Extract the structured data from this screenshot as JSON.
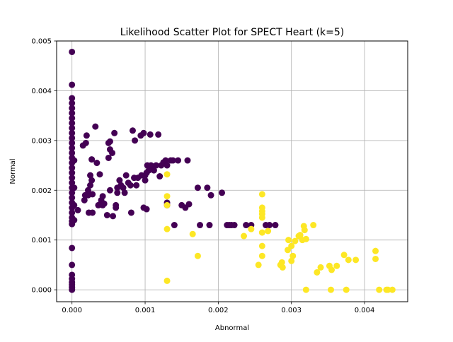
{
  "chart_data": {
    "type": "scatter",
    "title": "Likelihood Scatter Plot for SPECT Heart (k=5)",
    "xlabel": "Abnormal",
    "ylabel": "Normal",
    "xlim": [
      -0.00021,
      0.00459
    ],
    "ylim": [
      -0.00024,
      0.005
    ],
    "xticks": [
      0.0,
      0.001,
      0.002,
      0.003,
      0.004
    ],
    "xtick_labels": [
      "0.000",
      "0.001",
      "0.002",
      "0.003",
      "0.004"
    ],
    "yticks": [
      0.0,
      0.001,
      0.002,
      0.003,
      0.004,
      0.005
    ],
    "ytick_labels": [
      "0.000",
      "0.001",
      "0.002",
      "0.003",
      "0.004",
      "0.005"
    ],
    "grid": true,
    "legend": null,
    "colors": {
      "cluster_purple": "#440154",
      "cluster_yellow": "#fde725",
      "grid": "#b0b0b0",
      "axes": "#000000"
    },
    "series": [
      {
        "color": "#440154",
        "points": [
          [
            0.0,
            0.00478
          ],
          [
            0.0,
            0.00412
          ],
          [
            0.0,
            0.00385
          ],
          [
            0.0,
            0.00375
          ],
          [
            0.0,
            0.00365
          ],
          [
            0.0,
            0.00355
          ],
          [
            0.0,
            0.00345
          ],
          [
            0.0,
            0.00335
          ],
          [
            0.0,
            0.00325
          ],
          [
            0.0,
            0.00315
          ],
          [
            0.0,
            0.00305
          ],
          [
            0.0,
            0.00295
          ],
          [
            0.0,
            0.00285
          ],
          [
            0.0,
            0.00275
          ],
          [
            0.0,
            0.00265
          ],
          [
            0.0,
            0.00255
          ],
          [
            0.0,
            0.00245
          ],
          [
            0.0,
            0.00235
          ],
          [
            0.0,
            0.00225
          ],
          [
            0.0,
            0.00215
          ],
          [
            0.0,
            0.00205
          ],
          [
            0.0,
            0.00195
          ],
          [
            0.0,
            0.00185
          ],
          [
            0.0,
            0.00175
          ],
          [
            0.0,
            0.00165
          ],
          [
            0.0,
            0.00155
          ],
          [
            0.0,
            0.00145
          ],
          [
            0.0,
            0.00138
          ],
          [
            0.0,
            0.00132
          ],
          [
            0.0,
            0.00084
          ],
          [
            0.0,
            0.0005
          ],
          [
            0.0,
            0.0003
          ],
          [
            0.0,
            0.00022
          ],
          [
            0.0,
            0.00015
          ],
          [
            0.0,
            0.0001
          ],
          [
            0.0,
            5e-05
          ],
          [
            0.0,
            0.0
          ],
          [
            3e-05,
            0.0026
          ],
          [
            3e-05,
            0.00205
          ],
          [
            3e-05,
            0.0017
          ],
          [
            3e-05,
            0.0014
          ],
          [
            8e-05,
            0.0016
          ],
          [
            0.00015,
            0.0029
          ],
          [
            0.00017,
            0.0018
          ],
          [
            0.00018,
            0.0019
          ],
          [
            0.00019,
            0.00295
          ],
          [
            0.0002,
            0.0031
          ],
          [
            0.00022,
            0.0019
          ],
          [
            0.00022,
            0.002
          ],
          [
            0.00023,
            0.00155
          ],
          [
            0.00025,
            0.0023
          ],
          [
            0.00025,
            0.0021
          ],
          [
            0.00027,
            0.0022
          ],
          [
            0.00027,
            0.00262
          ],
          [
            0.00028,
            0.00155
          ],
          [
            0.00028,
            0.00192
          ],
          [
            0.00032,
            0.00328
          ],
          [
            0.00034,
            0.00255
          ],
          [
            0.00036,
            0.0017
          ],
          [
            0.00038,
            0.00232
          ],
          [
            0.0004,
            0.0018
          ],
          [
            0.0004,
            0.00175
          ],
          [
            0.00042,
            0.0017
          ],
          [
            0.00042,
            0.00188
          ],
          [
            0.00044,
            0.00173
          ],
          [
            0.00048,
            0.0015
          ],
          [
            0.0005,
            0.00265
          ],
          [
            0.0005,
            0.00295
          ],
          [
            0.00052,
            0.00282
          ],
          [
            0.00052,
            0.00298
          ],
          [
            0.00052,
            0.002
          ],
          [
            0.00055,
            0.00275
          ],
          [
            0.00056,
            0.00148
          ],
          [
            0.00058,
            0.00315
          ],
          [
            0.0006,
            0.0017
          ],
          [
            0.0006,
            0.00165
          ],
          [
            0.00062,
            0.00205
          ],
          [
            0.00062,
            0.00195
          ],
          [
            0.00065,
            0.0022
          ],
          [
            0.00067,
            0.0021
          ],
          [
            0.0007,
            0.00205
          ],
          [
            0.00072,
            0.00195
          ],
          [
            0.00074,
            0.0023
          ],
          [
            0.00077,
            0.00215
          ],
          [
            0.0008,
            0.0021
          ],
          [
            0.00081,
            0.00155
          ],
          [
            0.00083,
            0.0032
          ],
          [
            0.00085,
            0.00225
          ],
          [
            0.00086,
            0.003
          ],
          [
            0.00088,
            0.0021
          ],
          [
            0.0009,
            0.00225
          ],
          [
            0.00094,
            0.0031
          ],
          [
            0.00095,
            0.0023
          ],
          [
            0.00098,
            0.00165
          ],
          [
            0.00098,
            0.00315
          ],
          [
            0.001,
            0.0022
          ],
          [
            0.001,
            0.0023
          ],
          [
            0.00102,
            0.00162
          ],
          [
            0.00102,
            0.00235
          ],
          [
            0.00103,
            0.0025
          ],
          [
            0.00105,
            0.0024
          ],
          [
            0.00106,
            0.00245
          ],
          [
            0.00107,
            0.00312
          ],
          [
            0.00108,
            0.0025
          ],
          [
            0.0011,
            0.00248
          ],
          [
            0.00112,
            0.0024
          ],
          [
            0.00115,
            0.0025
          ],
          [
            0.00118,
            0.00312
          ],
          [
            0.0012,
            0.00228
          ],
          [
            0.00122,
            0.0025
          ],
          [
            0.00125,
            0.00256
          ],
          [
            0.00128,
            0.0026
          ],
          [
            0.0013,
            0.0025
          ],
          [
            0.0013,
            0.00175
          ],
          [
            0.0013,
            0.0017
          ],
          [
            0.00135,
            0.0026
          ],
          [
            0.00138,
            0.0026
          ],
          [
            0.0014,
            0.0013
          ],
          [
            0.00145,
            0.0026
          ],
          [
            0.0015,
            0.0017
          ],
          [
            0.00155,
            0.00165
          ],
          [
            0.00158,
            0.0026
          ],
          [
            0.0016,
            0.00172
          ],
          [
            0.00172,
            0.00205
          ],
          [
            0.00175,
            0.0013
          ],
          [
            0.00185,
            0.00205
          ],
          [
            0.00188,
            0.0013
          ],
          [
            0.0019,
            0.0019
          ],
          [
            0.00205,
            0.00195
          ],
          [
            0.00212,
            0.0013
          ],
          [
            0.00215,
            0.0013
          ],
          [
            0.00218,
            0.0013
          ],
          [
            0.00222,
            0.0013
          ],
          [
            0.00238,
            0.0013
          ],
          [
            0.00245,
            0.0013
          ],
          [
            0.00265,
            0.0013
          ],
          [
            0.0027,
            0.0013
          ],
          [
            0.00278,
            0.0013
          ]
        ]
      },
      {
        "color": "#fde725",
        "points": [
          [
            0.0013,
            0.00232
          ],
          [
            0.0013,
            0.00188
          ],
          [
            0.0013,
            0.0017
          ],
          [
            0.0013,
            0.00122
          ],
          [
            0.0013,
            0.00018
          ],
          [
            0.00165,
            0.00112
          ],
          [
            0.00172,
            0.00068
          ],
          [
            0.00235,
            0.00108
          ],
          [
            0.00245,
            0.00122
          ],
          [
            0.00255,
            0.0005
          ],
          [
            0.0026,
            0.00192
          ],
          [
            0.0026,
            0.00165
          ],
          [
            0.0026,
            0.00158
          ],
          [
            0.0026,
            0.00152
          ],
          [
            0.0026,
            0.00145
          ],
          [
            0.0026,
            0.00115
          ],
          [
            0.0026,
            0.00088
          ],
          [
            0.0026,
            0.00068
          ],
          [
            0.00268,
            0.00118
          ],
          [
            0.00285,
            0.0005
          ],
          [
            0.00287,
            0.00055
          ],
          [
            0.00288,
            0.00045
          ],
          [
            0.00295,
            0.0008
          ],
          [
            0.00296,
            0.001
          ],
          [
            0.003,
            0.00088
          ],
          [
            0.003,
            0.00058
          ],
          [
            0.00302,
            0.00068
          ],
          [
            0.00305,
            0.00098
          ],
          [
            0.0031,
            0.00108
          ],
          [
            0.00312,
            0.0011
          ],
          [
            0.00315,
            0.001
          ],
          [
            0.00317,
            0.00128
          ],
          [
            0.00318,
            0.0012
          ],
          [
            0.0032,
            0.00102
          ],
          [
            0.0032,
            0.0
          ],
          [
            0.0033,
            0.0013
          ],
          [
            0.00335,
            0.00035
          ],
          [
            0.0034,
            0.00045
          ],
          [
            0.00352,
            0.00048
          ],
          [
            0.00354,
            0.0
          ],
          [
            0.00355,
            0.0004
          ],
          [
            0.00362,
            0.00048
          ],
          [
            0.00372,
            0.0007
          ],
          [
            0.00375,
            0.0
          ],
          [
            0.00378,
            0.0006
          ],
          [
            0.00388,
            0.0006
          ],
          [
            0.00415,
            0.00078
          ],
          [
            0.00415,
            0.00062
          ],
          [
            0.0042,
            0.0
          ],
          [
            0.0043,
            0.0
          ],
          [
            0.00432,
            0.0
          ],
          [
            0.00438,
            0.0
          ]
        ]
      }
    ]
  }
}
